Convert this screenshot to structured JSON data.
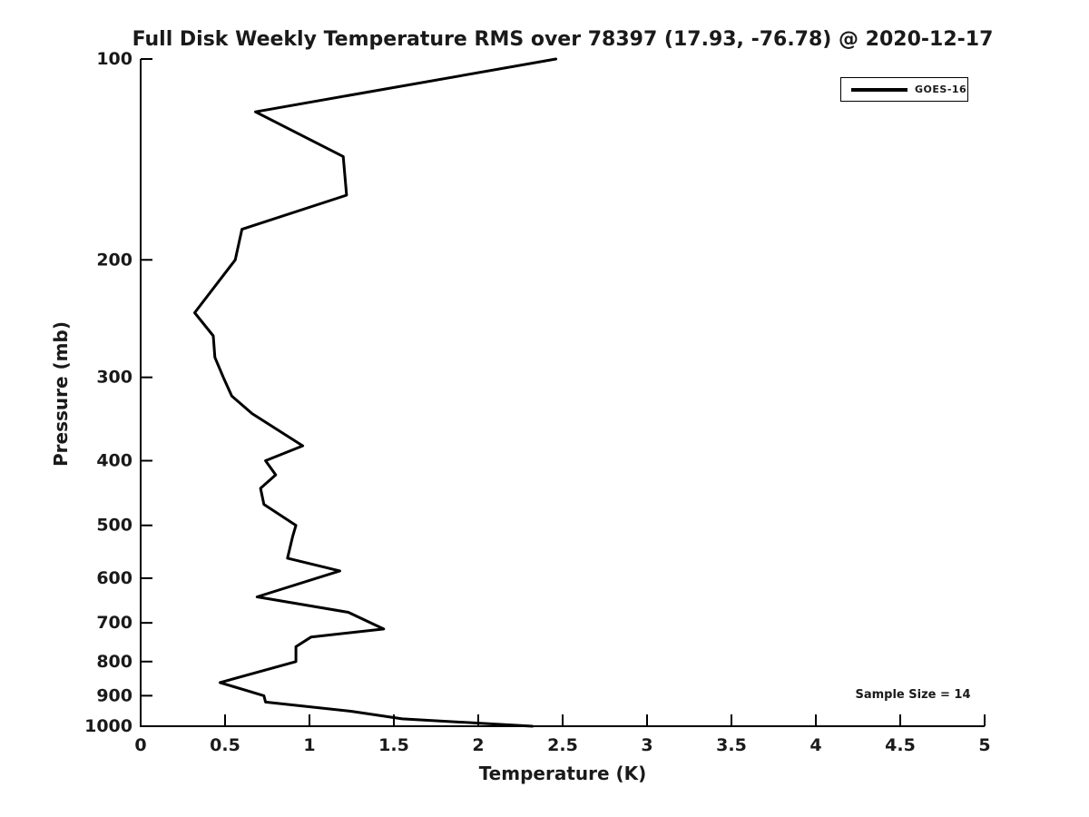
{
  "figure": {
    "background_color": "#ffffff",
    "text_color": "#1a1a1a",
    "line_color": "#000000"
  },
  "chart_data": {
    "type": "line",
    "title": "Full Disk Weekly Temperature RMS over 78397 (17.93, -76.78) @ 2020-12-17",
    "xlabel": "Temperature (K)",
    "ylabel": "Pressure (mb)",
    "xlim": [
      0,
      5
    ],
    "ylim": [
      100,
      1000
    ],
    "y_scale": "log",
    "y_inverted": true,
    "grid": false,
    "x_tick_labels": [
      "0",
      "0.5",
      "1",
      "1.5",
      "2",
      "2.5",
      "3",
      "3.5",
      "4",
      "4.5",
      "5"
    ],
    "y_tick_labels": [
      "100",
      "200",
      "300",
      "400",
      "500",
      "600",
      "700",
      "800",
      "900",
      "1000"
    ],
    "legend": {
      "entries": [
        "GOES-16"
      ],
      "position": "top-right"
    },
    "annotation": "Sample Size = 14",
    "series": [
      {
        "name": "GOES-16",
        "color": "#000000",
        "pressure_mb": [
          100,
          120,
          140,
          160,
          180,
          200,
          240,
          260,
          280,
          300,
          320,
          340,
          380,
          400,
          420,
          440,
          465,
          500,
          520,
          560,
          585,
          640,
          675,
          715,
          735,
          760,
          800,
          860,
          900,
          920,
          950,
          975,
          1000
        ],
        "temperature_k": [
          2.46,
          0.68,
          1.2,
          1.22,
          0.6,
          0.56,
          0.32,
          0.43,
          0.44,
          0.49,
          0.54,
          0.66,
          0.96,
          0.74,
          0.8,
          0.71,
          0.73,
          0.92,
          0.9,
          0.87,
          1.18,
          0.69,
          1.23,
          1.44,
          1.01,
          0.92,
          0.92,
          0.47,
          0.73,
          0.74,
          1.25,
          1.55,
          2.32
        ]
      }
    ]
  }
}
